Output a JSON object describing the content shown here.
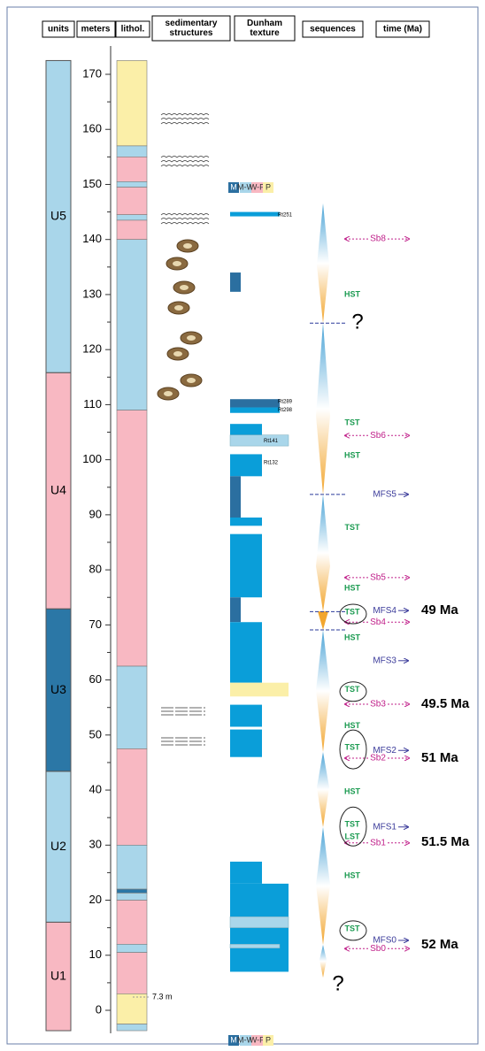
{
  "header": [
    "units",
    "meters",
    "lithol.",
    "sedimentary structures",
    "Dunham texture",
    "sequences",
    "time (Ma)"
  ],
  "meters": {
    "ticks": [
      0,
      10,
      20,
      30,
      40,
      50,
      60,
      70,
      80,
      90,
      100,
      110,
      120,
      130,
      140,
      150,
      160,
      170
    ]
  },
  "units": [
    {
      "label": "U5",
      "base": 115.8,
      "top": 172.5,
      "color": "#a9d6ea"
    },
    {
      "label": "U4",
      "base": 72.9,
      "top": 115.8,
      "color": "#f8b8c2"
    },
    {
      "label": "U3",
      "base": 43.4,
      "top": 72.9,
      "color": "#2b77a6"
    },
    {
      "label": "U2",
      "base": 16,
      "top": 43.4,
      "color": "#a9d6ea"
    },
    {
      "label": "U1",
      "base": -3.7,
      "top": 16,
      "color": "#f8b8c2"
    }
  ],
  "lithology": [
    {
      "base": 157,
      "top": 172.5,
      "color": "#fbefa8"
    },
    {
      "base": 155,
      "top": 157,
      "color": "#a9d6ea"
    },
    {
      "base": 150.5,
      "top": 155,
      "color": "#f8b8c2"
    },
    {
      "base": 149.5,
      "top": 150.5,
      "color": "#a9d6ea"
    },
    {
      "base": 144.5,
      "top": 149.5,
      "color": "#f8b8c2"
    },
    {
      "base": 143.5,
      "top": 144.5,
      "color": "#a9d6ea"
    },
    {
      "base": 140,
      "top": 143.5,
      "color": "#f8b8c2"
    },
    {
      "base": 109,
      "top": 140,
      "color": "#a9d6ea"
    },
    {
      "base": 62.5,
      "top": 109,
      "color": "#f8b8c2"
    },
    {
      "base": 47.5,
      "top": 62.5,
      "color": "#a9d6ea"
    },
    {
      "base": 30,
      "top": 47.5,
      "color": "#f8b8c2"
    },
    {
      "base": 22,
      "top": 30,
      "color": "#a9d6ea"
    },
    {
      "base": 21.3,
      "top": 22,
      "color": "#2b77a6"
    },
    {
      "base": 20,
      "top": 21.3,
      "color": "#a9d6ea"
    },
    {
      "base": 12,
      "top": 20,
      "color": "#f8b8c2"
    },
    {
      "base": 10.5,
      "top": 12,
      "color": "#a9d6ea"
    },
    {
      "base": 3,
      "top": 10.5,
      "color": "#f8b8c2"
    },
    {
      "base": -2.5,
      "top": 3,
      "color": "#fbefa8"
    },
    {
      "base": -3.7,
      "top": -2.5,
      "color": "#a9d6ea"
    }
  ],
  "thickness_note": "7.3 m",
  "dunham": {
    "legend": [
      {
        "label": "M",
        "color": "#2b6fa0"
      },
      {
        "label": "M-W",
        "color": "#a9d6ea"
      },
      {
        "label": "W-P",
        "color": "#f8b8c2"
      },
      {
        "label": "P",
        "color": "#fbefa8"
      }
    ],
    "beds": [
      {
        "base": 144.2,
        "top": 145,
        "class": 3,
        "color": "#0a9ed9"
      },
      {
        "base": 130.5,
        "top": 134,
        "class": 0,
        "color": "#2b6fa0"
      },
      {
        "base": 109.5,
        "top": 111,
        "class": 3,
        "color": "#2b6fa0"
      },
      {
        "base": 108.5,
        "top": 109.5,
        "class": 3,
        "color": "#0a9ed9"
      },
      {
        "base": 104.5,
        "top": 106.5,
        "class": 2,
        "color": "#0a9ed9"
      },
      {
        "base": 102.5,
        "top": 104.5,
        "class": 3,
        "color": "#a9d6ea"
      },
      {
        "base": 97,
        "top": 101,
        "class": 2,
        "color": "#0a9ed9"
      },
      {
        "base": 89.5,
        "top": 97,
        "class": 0,
        "color": "#2b6fa0"
      },
      {
        "base": 88,
        "top": 89.5,
        "class": 2,
        "color": "#0a9ed9"
      },
      {
        "base": 75,
        "top": 86.5,
        "class": 2,
        "color": "#0a9ed9"
      },
      {
        "base": 70.5,
        "top": 75,
        "class": 0,
        "color": "#2b6fa0"
      },
      {
        "base": 59.5,
        "top": 70.5,
        "class": 2,
        "color": "#0a9ed9"
      },
      {
        "base": 57,
        "top": 59.5,
        "class": 3,
        "color": "#fbefa8"
      },
      {
        "base": 51.5,
        "top": 55.5,
        "class": 2,
        "color": "#0a9ed9"
      },
      {
        "base": 46,
        "top": 51,
        "class": 2,
        "color": "#0a9ed9"
      },
      {
        "base": 23,
        "top": 27,
        "class": 2,
        "color": "#0a9ed9"
      },
      {
        "base": 7,
        "top": 23,
        "class": 3,
        "color": "#0a9ed9"
      },
      {
        "base": 15,
        "top": 17,
        "class": 3,
        "color": "#a9d6ea"
      },
      {
        "base": 11.3,
        "top": 12,
        "class": 3,
        "color": "#a9d6ea"
      }
    ],
    "samples": [
      {
        "label": "Rt251",
        "at": 144.5
      },
      {
        "label": "Rt289",
        "at": 110.6
      },
      {
        "label": "Rt298",
        "at": 109
      },
      {
        "label": "Rt141",
        "at": 103.4
      },
      {
        "label": "Rt132",
        "at": 99.5
      }
    ]
  },
  "sequences": {
    "boundaries": [
      {
        "label": "Sb8",
        "at": 140.1
      },
      {
        "label": "Sb6",
        "at": 104.4
      },
      {
        "label": "Sb5",
        "at": 78.6
      },
      {
        "label": "Sb4",
        "at": 70.5
      },
      {
        "label": "Sb3",
        "at": 55.6
      },
      {
        "label": "Sb2",
        "at": 45.8
      },
      {
        "label": "Sb1",
        "at": 30.4
      },
      {
        "label": "Sb0",
        "at": 11.2
      }
    ],
    "mfs": [
      {
        "label": "MFS5",
        "at": 93.7
      },
      {
        "label": "MFS4",
        "at": 72.6
      },
      {
        "label": "MFS3",
        "at": 63.5
      },
      {
        "label": "MFS2",
        "at": 47.2
      },
      {
        "label": "MFS1",
        "at": 33.3
      },
      {
        "label": "MFS0",
        "at": 12.7
      }
    ],
    "tracts": [
      {
        "label": "HST",
        "at": 130
      },
      {
        "label": "TST",
        "at": 106.7
      },
      {
        "label": "HST",
        "at": 100.7
      },
      {
        "label": "TST",
        "at": 87.6
      },
      {
        "label": "HST",
        "at": 76.6
      },
      {
        "label": "TST",
        "at": 72.3,
        "circled": true
      },
      {
        "label": "HST",
        "at": 67.6
      },
      {
        "label": "TST",
        "at": 58.2,
        "circled": true
      },
      {
        "label": "HST",
        "at": 51.6
      },
      {
        "label": "TST",
        "at": 47.7,
        "circled": true
      },
      {
        "label": "HST",
        "at": 39.7
      },
      {
        "label": "TST",
        "at": 33.7,
        "circled": true
      },
      {
        "label": "LST",
        "at": 31.5
      },
      {
        "label": "HST",
        "at": 24.4
      },
      {
        "label": "TST",
        "at": 14.8,
        "circled": true
      }
    ],
    "ages": [
      {
        "label": "49 Ma",
        "at": 72.6
      },
      {
        "label": "49.5 Ma",
        "at": 55.6
      },
      {
        "label": "51 Ma",
        "at": 45.8
      },
      {
        "label": "51.5 Ma",
        "at": 30.5
      },
      {
        "label": "52 Ma",
        "at": 11.9
      }
    ],
    "unknowns": [
      {
        "label": "?",
        "at": 124.8
      },
      {
        "label": "?",
        "at": 5.9
      }
    ]
  }
}
